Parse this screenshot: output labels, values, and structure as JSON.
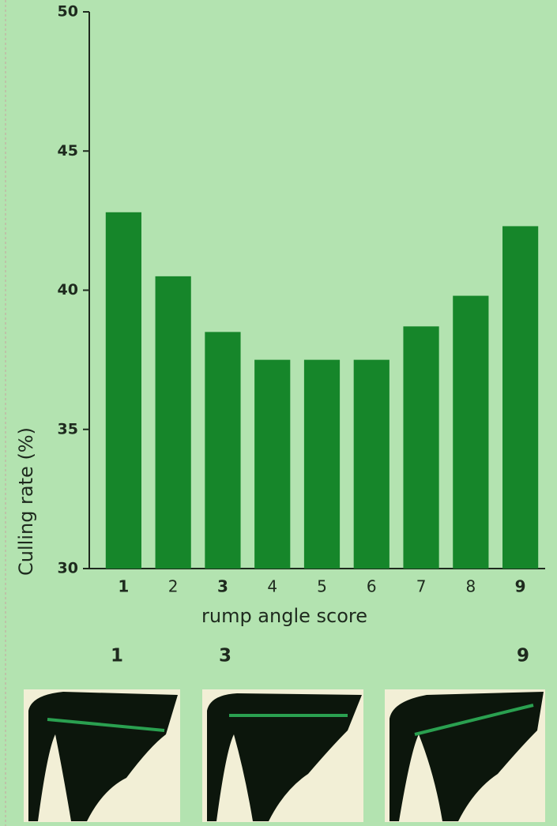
{
  "chart_data": {
    "type": "bar",
    "y_axis_label": "Culling rate (%)",
    "x_axis_label": "rump angle score",
    "categories": [
      "1",
      "2",
      "3",
      "4",
      "5",
      "6",
      "7",
      "8",
      "9"
    ],
    "values": [
      42.8,
      40.5,
      38.5,
      37.5,
      37.5,
      37.5,
      38.7,
      39.8,
      42.3
    ],
    "color": "#16862a",
    "ylim": [
      30,
      50
    ],
    "yticks": [
      30,
      35,
      40,
      45,
      50
    ],
    "illustrations": [
      {
        "label": "1"
      },
      {
        "label": "3"
      },
      {
        "label": "9"
      }
    ]
  }
}
